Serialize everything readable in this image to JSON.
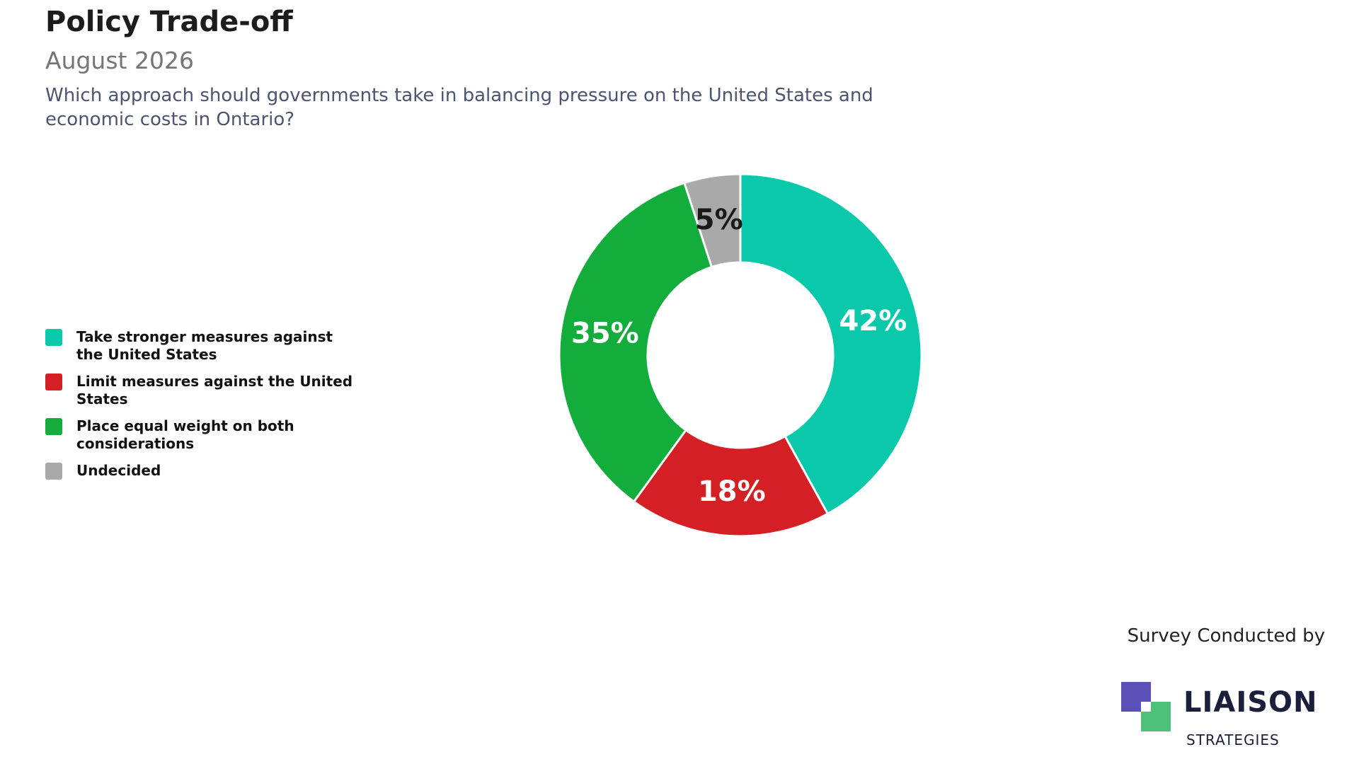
{
  "header": {
    "title": "Policy Trade-off",
    "subtitle": "August 2026",
    "question": "Which approach should governments take in balancing pressure on the United States and economic costs in Ontario?"
  },
  "chart_data": {
    "type": "pie",
    "variant": "donut",
    "title": "Policy Trade-off",
    "subtitle": "August 2026",
    "legend_position": "left",
    "categories": [
      "Take stronger measures against the United States",
      "Limit measures against the United States",
      "Place equal weight on both considerations",
      "Undecided"
    ],
    "values": [
      42,
      18,
      35,
      5
    ],
    "labels": [
      "42%",
      "18%",
      "35%",
      "5%"
    ],
    "colors": [
      "#0ac9aa",
      "#d41f24",
      "#13ad3b",
      "#a9a9a9"
    ],
    "label_colors": [
      "#ffffff",
      "#ffffff",
      "#ffffff",
      "#1a1a1a"
    ]
  },
  "footer": {
    "credit": "Survey Conducted by",
    "logo_name": "LIAISON",
    "logo_sub": "STRATEGIES"
  }
}
